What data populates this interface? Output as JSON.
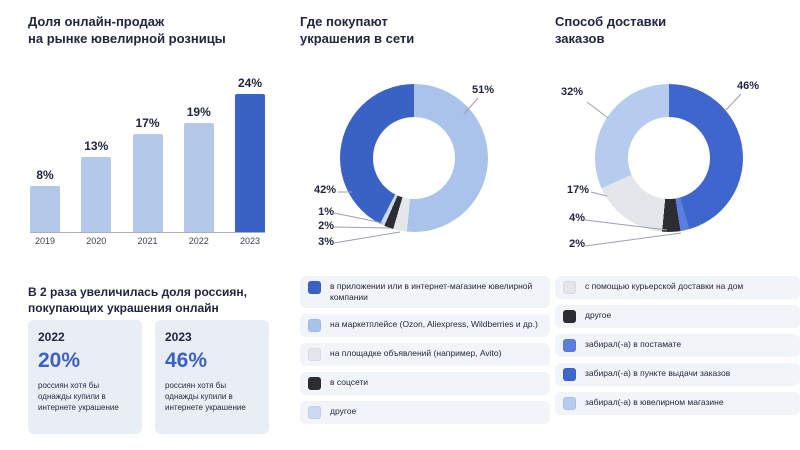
{
  "growth": {
    "heading": "В 2 раза увеличилась доля россиян,\nпокупающих украшения онлайн",
    "cards": [
      {
        "year": "2022",
        "percent": "20%",
        "text": "россиян хотя бы однажды купили в интернете украшение"
      },
      {
        "year": "2023",
        "percent": "46%",
        "text": "россиян хотя бы однажды купили в интернете украшение"
      }
    ]
  },
  "chart_data": [
    {
      "type": "bar",
      "title": "Доля онлайн-продаж\nна рынке ювелирной розницы",
      "categories": [
        "2019",
        "2020",
        "2021",
        "2022",
        "2023"
      ],
      "values": [
        8,
        13,
        17,
        19,
        24
      ],
      "value_labels": [
        "8%",
        "13%",
        "17%",
        "19%",
        "24%"
      ],
      "ylim": [
        0,
        24
      ],
      "bar_color": "#b4c8ea",
      "highlight_index": 4,
      "highlight_color": "#3a62c4"
    },
    {
      "type": "pie",
      "style": "donut",
      "title": "Где покупают\nукрашения в сети",
      "segments": [
        {
          "label": "на маркетплейсе (Ozon, Aliexpress, Wildberries и др.)",
          "value": 51,
          "color": "#a9c3ea"
        },
        {
          "label": "на площадке объявлений (например, Avito)",
          "value": 3,
          "color": "#e3e6eb"
        },
        {
          "label": "в соцсети",
          "value": 2,
          "color": "#2b2d33"
        },
        {
          "label": "другое",
          "value": 1,
          "color": "#cbdaf2"
        },
        {
          "label": "в приложении или в интернет-магазине ювелирной компании",
          "value": 42,
          "color": "#3a62c4"
        }
      ],
      "callouts": [
        "51%",
        "42%",
        "1%",
        "2%",
        "3%"
      ],
      "legend": [
        {
          "color": "#3a62c4",
          "label": "в приложении или в интернет-магазине ювелирной компании"
        },
        {
          "color": "#a9c3ea",
          "label": "на маркетплейсе (Ozon, Aliexpress, Wildberries и др.)"
        },
        {
          "color": "#e3e6eb",
          "label": "на площадке объявлений (например, Avito)"
        },
        {
          "color": "#2b2d33",
          "label": "в соцсети"
        },
        {
          "color": "#cbdaf2",
          "label": "другое"
        }
      ]
    },
    {
      "type": "pie",
      "style": "donut",
      "title": "Способ доставки\nзаказов",
      "segments": [
        {
          "label": "забирал(-а) в пункте выдачи заказов",
          "value": 46,
          "color": "#3f66cc"
        },
        {
          "label": "забирал(-а) в постамате",
          "value": 2,
          "color": "#5c7fdd"
        },
        {
          "label": "другое",
          "value": 4,
          "color": "#2b2d33"
        },
        {
          "label": "с помощью курьерской доставки на дом",
          "value": 17,
          "color": "#e3e6eb"
        },
        {
          "label": "забирал(-а) в ювелирном магазине",
          "value": 32,
          "color": "#b6ccee"
        }
      ],
      "callouts": [
        "32%",
        "46%",
        "17%",
        "4%",
        "2%"
      ],
      "legend": [
        {
          "color": "#e3e6eb",
          "label": "с помощью курьерской доставки на дом"
        },
        {
          "color": "#2b2d33",
          "label": "другое"
        },
        {
          "color": "#5c7fdd",
          "label": "забирал(-а) в постамате"
        },
        {
          "color": "#3f66cc",
          "label": "забирал(-а) в пункте выдачи заказов"
        },
        {
          "color": "#b6ccee",
          "label": "забирал(-а)\nв ювелирном магазине"
        }
      ]
    }
  ]
}
